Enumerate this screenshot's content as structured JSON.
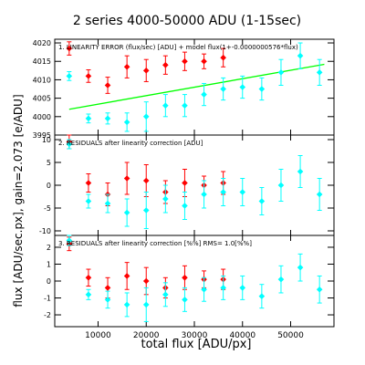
{
  "chart_data": {
    "type": "scatter",
    "title": "2 series 4000-50000 ADU (1-15sec)",
    "xlabel": "total flux [ADU/px]",
    "ylabel": "flux [ADU/sec.px], gain=2.073 [e/ADU]",
    "xlim": [
      1000,
      59000
    ],
    "x_ticks": [
      10000,
      20000,
      30000,
      40000,
      50000
    ],
    "colors": {
      "red": "#ff0000",
      "cyan": "#00ffff",
      "fit": "#00ff00",
      "axis": "#000000"
    },
    "panels": [
      {
        "label": "1. LINEARITY ERROR (flux/sec) [ADU] + model flux(1+-0.0000000576*flux)",
        "ylim": [
          3995,
          4021
        ],
        "y_ticks": [
          3995,
          4000,
          4005,
          4010,
          4015,
          4020
        ],
        "fit_line": {
          "x": [
            4000,
            57000
          ],
          "y": [
            4002.0,
            4014.2
          ]
        },
        "series": [
          {
            "marker": "diamond",
            "color": "red",
            "points": [
              {
                "x": 4000,
                "y": 4018.5,
                "err": 1.8
              },
              {
                "x": 8000,
                "y": 4011.0,
                "err": 1.7
              },
              {
                "x": 12000,
                "y": 4008.5,
                "err": 2.2
              },
              {
                "x": 16000,
                "y": 4013.5,
                "err": 3.0
              },
              {
                "x": 20000,
                "y": 4012.5,
                "err": 3.0
              },
              {
                "x": 24000,
                "y": 4014.0,
                "err": 2.5
              },
              {
                "x": 28000,
                "y": 4015.0,
                "err": 2.5
              },
              {
                "x": 32000,
                "y": 4015.0,
                "err": 2.0
              },
              {
                "x": 36000,
                "y": 4016.0,
                "err": 2.5
              }
            ]
          },
          {
            "marker": "diamond",
            "color": "cyan",
            "points": [
              {
                "x": 4000,
                "y": 4011.0,
                "err": 1.2
              },
              {
                "x": 8000,
                "y": 3999.5,
                "err": 1.2
              },
              {
                "x": 12000,
                "y": 3999.5,
                "err": 1.5
              },
              {
                "x": 16000,
                "y": 3998.5,
                "err": 2.5
              },
              {
                "x": 20000,
                "y": 4000.0,
                "err": 4.0
              },
              {
                "x": 24000,
                "y": 4003.0,
                "err": 3.0
              },
              {
                "x": 28000,
                "y": 4003.0,
                "err": 3.0
              },
              {
                "x": 32000,
                "y": 4006.0,
                "err": 3.0
              },
              {
                "x": 36000,
                "y": 4007.5,
                "err": 3.0
              },
              {
                "x": 40000,
                "y": 4008.0,
                "err": 3.0
              },
              {
                "x": 44000,
                "y": 4007.5,
                "err": 3.0
              },
              {
                "x": 48000,
                "y": 4012.0,
                "err": 3.5
              },
              {
                "x": 52000,
                "y": 4016.5,
                "err": 3.5
              },
              {
                "x": 56000,
                "y": 4012.0,
                "err": 3.5
              }
            ]
          }
        ]
      },
      {
        "label": "2. RESIDUALS after linearity correction [ADU]",
        "ylim": [
          -11,
          11
        ],
        "y_ticks": [
          -10,
          -5,
          0,
          5,
          10
        ],
        "series": [
          {
            "marker": "diamond",
            "color": "red",
            "points": [
              {
                "x": 4000,
                "y": 9.5,
                "err": 1.5
              },
              {
                "x": 8000,
                "y": 0.5,
                "err": 2.0
              },
              {
                "x": 12000,
                "y": -2.0,
                "err": 2.5
              },
              {
                "x": 16000,
                "y": 1.5,
                "err": 3.5
              },
              {
                "x": 20000,
                "y": 1.0,
                "err": 3.5
              },
              {
                "x": 24000,
                "y": -1.5,
                "err": 2.5
              },
              {
                "x": 28000,
                "y": 0.5,
                "err": 3.0
              },
              {
                "x": 32000,
                "y": 0.0,
                "err": 2.0
              },
              {
                "x": 36000,
                "y": 0.5,
                "err": 2.5
              }
            ]
          },
          {
            "marker": "diamond",
            "color": "cyan",
            "points": [
              {
                "x": 4000,
                "y": 9.0,
                "err": 1.0
              },
              {
                "x": 8000,
                "y": -3.5,
                "err": 1.5
              },
              {
                "x": 12000,
                "y": -4.0,
                "err": 2.0
              },
              {
                "x": 16000,
                "y": -6.0,
                "err": 3.0
              },
              {
                "x": 20000,
                "y": -5.5,
                "err": 4.0
              },
              {
                "x": 24000,
                "y": -3.0,
                "err": 3.0
              },
              {
                "x": 28000,
                "y": -4.5,
                "err": 3.0
              },
              {
                "x": 32000,
                "y": -2.0,
                "err": 3.0
              },
              {
                "x": 36000,
                "y": -1.5,
                "err": 3.0
              },
              {
                "x": 40000,
                "y": -1.5,
                "err": 3.0
              },
              {
                "x": 44000,
                "y": -3.5,
                "err": 3.0
              },
              {
                "x": 48000,
                "y": 0.0,
                "err": 3.5
              },
              {
                "x": 52000,
                "y": 3.0,
                "err": 3.5
              },
              {
                "x": 56000,
                "y": -2.0,
                "err": 3.5
              }
            ]
          }
        ]
      },
      {
        "label": "3. RESIDUALS after linearity correction [%%] RMS=  1.0[%%]",
        "ylim": [
          -2.7,
          2.7
        ],
        "y_ticks": [
          -2,
          -1,
          0,
          1,
          2
        ],
        "series": [
          {
            "marker": "diamond",
            "color": "red",
            "points": [
              {
                "x": 4000,
                "y": 2.2,
                "err": 0.4
              },
              {
                "x": 8000,
                "y": 0.2,
                "err": 0.5
              },
              {
                "x": 12000,
                "y": -0.4,
                "err": 0.6
              },
              {
                "x": 16000,
                "y": 0.3,
                "err": 0.8
              },
              {
                "x": 20000,
                "y": 0.0,
                "err": 0.8
              },
              {
                "x": 24000,
                "y": -0.4,
                "err": 0.6
              },
              {
                "x": 28000,
                "y": 0.2,
                "err": 0.7
              },
              {
                "x": 32000,
                "y": 0.1,
                "err": 0.5
              },
              {
                "x": 36000,
                "y": 0.1,
                "err": 0.6
              }
            ]
          },
          {
            "marker": "diamond",
            "color": "cyan",
            "points": [
              {
                "x": 4000,
                "y": 2.4,
                "err": 0.3
              },
              {
                "x": 8000,
                "y": -0.8,
                "err": 0.3
              },
              {
                "x": 12000,
                "y": -1.1,
                "err": 0.5
              },
              {
                "x": 16000,
                "y": -1.4,
                "err": 0.7
              },
              {
                "x": 20000,
                "y": -1.4,
                "err": 1.0
              },
              {
                "x": 24000,
                "y": -0.8,
                "err": 0.7
              },
              {
                "x": 28000,
                "y": -1.1,
                "err": 0.7
              },
              {
                "x": 32000,
                "y": -0.5,
                "err": 0.7
              },
              {
                "x": 36000,
                "y": -0.4,
                "err": 0.7
              },
              {
                "x": 40000,
                "y": -0.4,
                "err": 0.7
              },
              {
                "x": 44000,
                "y": -0.9,
                "err": 0.7
              },
              {
                "x": 48000,
                "y": 0.1,
                "err": 0.8
              },
              {
                "x": 52000,
                "y": 0.8,
                "err": 0.8
              },
              {
                "x": 56000,
                "y": -0.5,
                "err": 0.8
              }
            ]
          }
        ]
      }
    ]
  }
}
